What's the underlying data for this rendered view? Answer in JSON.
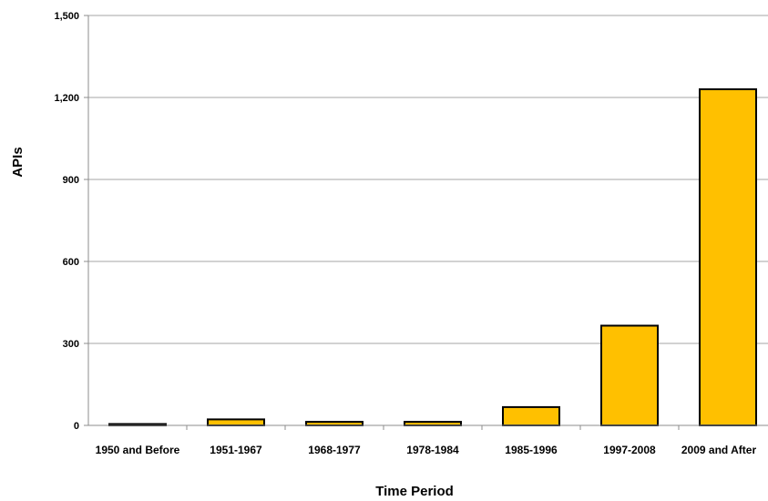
{
  "chart_data": {
    "type": "bar",
    "title": "",
    "xlabel": "Time Period",
    "ylabel": "APIs",
    "categories": [
      "1950 and Before",
      "1951-1967",
      "1968-1977",
      "1978-1984",
      "1985-1996",
      "1997-2008",
      "2009 and After"
    ],
    "values": [
      5,
      22,
      13,
      13,
      67,
      365,
      1230
    ],
    "ylim": [
      0,
      1500
    ],
    "yticks": [
      0,
      300,
      600,
      900,
      1200,
      1500
    ],
    "ytick_labels": [
      "0",
      "300",
      "600",
      "900",
      "1,200",
      "1,500"
    ],
    "grid": true,
    "bar_color": "#FFC000",
    "bar_edge_color": "#000000",
    "grid_color": "#A6A6A6"
  }
}
